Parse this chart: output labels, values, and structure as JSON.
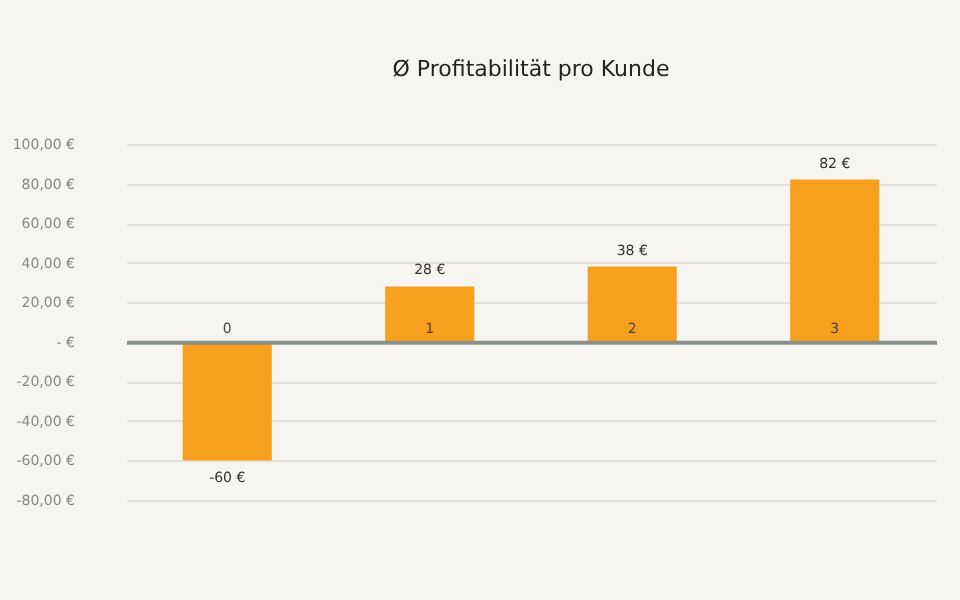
{
  "chart_data": {
    "type": "bar",
    "title": "Ø Profitabilität pro Kunde",
    "categories": [
      "0",
      "1",
      "2",
      "3"
    ],
    "values": [
      -60,
      28,
      38,
      82
    ],
    "value_labels": [
      "-60 €",
      "28 €",
      "38 €",
      "82 €"
    ],
    "color": "#f7a01d",
    "ylim": [
      -80,
      100
    ],
    "yticks": [
      {
        "value": 100,
        "label": "100,00 €"
      },
      {
        "value": 80,
        "label": "80,00 €"
      },
      {
        "value": 60,
        "label": "60,00 €"
      },
      {
        "value": 40,
        "label": "40,00 €"
      },
      {
        "value": 20,
        "label": "20,00 €"
      },
      {
        "value": 0,
        "label": "- €"
      },
      {
        "value": -20,
        "label": "-20,00 €"
      },
      {
        "value": -40,
        "label": "-40,00 €"
      },
      {
        "value": -60,
        "label": "-60,00 €"
      },
      {
        "value": -80,
        "label": "-80,00 €"
      }
    ],
    "grid": true
  }
}
